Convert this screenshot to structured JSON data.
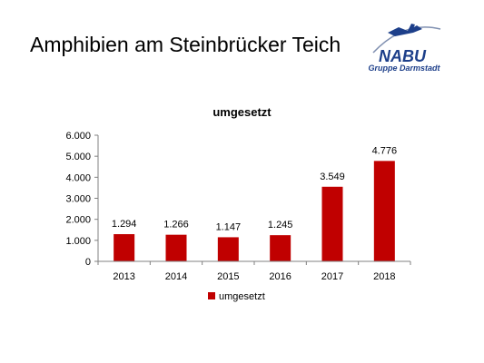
{
  "slide": {
    "title": "Amphibien am Steinbrücker Teich",
    "logo_text": "NABU",
    "logo_subtitle": "Gruppe Darmstadt"
  },
  "colors": {
    "bar": "#c00000",
    "logo_blue": "#1d3f8a"
  },
  "chart_data": {
    "type": "bar",
    "title": "umgesetzt",
    "categories": [
      "2013",
      "2014",
      "2015",
      "2016",
      "2017",
      "2018"
    ],
    "series": [
      {
        "name": "umgesetzt",
        "values": [
          1294,
          1266,
          1147,
          1245,
          3549,
          4776
        ],
        "labels": [
          "1.294",
          "1.266",
          "1.147",
          "1.245",
          "3.549",
          "4.776"
        ]
      }
    ],
    "ylim": [
      0,
      6000
    ],
    "yticks": [
      0,
      1000,
      2000,
      3000,
      4000,
      5000,
      6000
    ],
    "ytick_labels": [
      "0",
      "1.000",
      "2.000",
      "3.000",
      "4.000",
      "5.000",
      "6.000"
    ],
    "grid": false,
    "legend": "bottom"
  }
}
